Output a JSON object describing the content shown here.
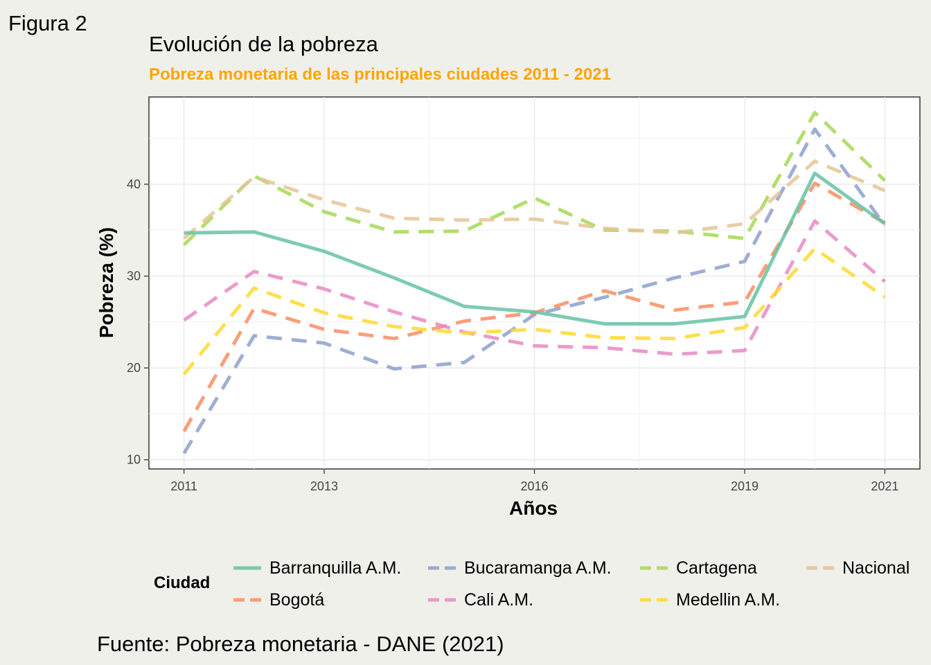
{
  "figure_label": "Figura 2",
  "caption": "Fuente: Pobreza monetaria - DANE (2021)",
  "chart_data": {
    "type": "line",
    "title": "Evolución de la pobreza",
    "subtitle": "Pobreza monetaria de las principales ciudades 2011 - 2021",
    "xlabel": "Años",
    "ylabel": "Pobreza (%)",
    "xlim": [
      2010.5,
      2021.5
    ],
    "ylim": [
      9,
      49.5
    ],
    "x_ticks": [
      2011,
      2013,
      2016,
      2019,
      2021
    ],
    "y_ticks": [
      10,
      20,
      30,
      40
    ],
    "grid": true,
    "legend_title": "Ciudad",
    "legend_position": "bottom",
    "x": [
      2011,
      2012,
      2013,
      2014,
      2015,
      2016,
      2017,
      2018,
      2019,
      2020,
      2021
    ],
    "series": [
      {
        "name": "Barranquilla A.M.",
        "color": "#66c2a5",
        "dash": "solid",
        "values": [
          34.7,
          34.8,
          32.7,
          29.8,
          26.7,
          26.1,
          24.8,
          24.8,
          25.6,
          41.2,
          35.7
        ]
      },
      {
        "name": "Bucaramanga A.M.",
        "color": "#8da0cb",
        "dash": "dashed",
        "values": [
          10.7,
          23.5,
          22.7,
          19.9,
          20.6,
          25.8,
          27.7,
          29.8,
          31.6,
          46.0,
          35.5
        ]
      },
      {
        "name": "Cartagena",
        "color": "#a6d854",
        "dash": "dashed",
        "values": [
          33.4,
          40.9,
          37.0,
          34.8,
          34.9,
          38.5,
          35.0,
          34.9,
          34.1,
          47.8,
          40.4
        ]
      },
      {
        "name": "Nacional",
        "color": "#e5c494",
        "dash": "dashed",
        "values": [
          34.1,
          40.8,
          38.3,
          36.3,
          36.1,
          36.2,
          35.2,
          34.7,
          35.7,
          42.5,
          39.3
        ]
      },
      {
        "name": "Bogotá",
        "color": "#fc8d62",
        "dash": "dashed",
        "values": [
          13.1,
          26.5,
          24.2,
          23.2,
          25.1,
          26.0,
          28.4,
          26.3,
          27.2,
          40.1,
          35.8
        ]
      },
      {
        "name": "Cali A.M.",
        "color": "#e78ac3",
        "dash": "dashed",
        "values": [
          25.2,
          30.5,
          28.6,
          26.1,
          23.9,
          22.4,
          22.2,
          21.5,
          21.9,
          36.0,
          29.4
        ]
      },
      {
        "name": "Medellín A.M.",
        "label": "Medellin A.M.",
        "color": "#ffd92f",
        "dash": "dashed",
        "values": [
          19.3,
          28.7,
          26.0,
          24.5,
          23.8,
          24.2,
          23.3,
          23.2,
          24.4,
          33.0,
          27.7
        ]
      }
    ],
    "legend": [
      {
        "label": "Barranquilla A.M.",
        "color": "#66c2a5",
        "dash": "solid"
      },
      {
        "label": "Bucaramanga A.M.",
        "color": "#8da0cb",
        "dash": "dashed"
      },
      {
        "label": "Cartagena",
        "color": "#a6d854",
        "dash": "dashed"
      },
      {
        "label": "Nacional",
        "color": "#e5c494",
        "dash": "dashed"
      },
      {
        "label": "Bogotá",
        "color": "#fc8d62",
        "dash": "dashed"
      },
      {
        "label": "Cali A.M.",
        "color": "#e78ac3",
        "dash": "dashed"
      },
      {
        "label": "Medellin A.M.",
        "color": "#ffd92f",
        "dash": "dashed"
      }
    ]
  }
}
